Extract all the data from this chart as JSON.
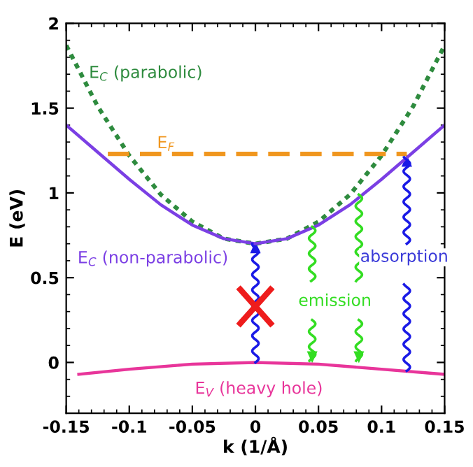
{
  "chart_data": {
    "type": "line",
    "xlabel": "k (1/Å)",
    "ylabel": "E (eV)",
    "xlim": [
      -0.15,
      0.15
    ],
    "xticks": [
      -0.15,
      -0.1,
      -0.05,
      0,
      0.05,
      0.1,
      0.15
    ],
    "ylim": [
      -0.3,
      2
    ],
    "yticks": [
      0,
      0.5,
      1,
      1.5,
      2
    ],
    "grid": false,
    "legend": false,
    "series": [
      {
        "name": "E$_{C}$ (parabolic)",
        "color": "#2e8b3e",
        "line_style": "dotted",
        "x": [
          -0.15,
          -0.125,
          -0.1,
          -0.075,
          -0.05,
          -0.025,
          0,
          0.025,
          0.05,
          0.075,
          0.1,
          0.125,
          0.15
        ],
        "values": [
          1.87,
          1.51,
          1.22,
          0.99,
          0.83,
          0.73,
          0.7,
          0.73,
          0.83,
          0.99,
          1.22,
          1.51,
          1.87
        ]
      },
      {
        "name": "E$_{C}$ (non-parabolic)",
        "color": "#7b3fe4",
        "line_style": "solid",
        "x": [
          -0.15,
          -0.125,
          -0.1,
          -0.075,
          -0.05,
          -0.025,
          0,
          0.025,
          0.05,
          0.075,
          0.1,
          0.125,
          0.15
        ],
        "values": [
          1.4,
          1.24,
          1.08,
          0.93,
          0.81,
          0.73,
          0.7,
          0.73,
          0.81,
          0.93,
          1.08,
          1.24,
          1.4
        ]
      },
      {
        "name": "E$_{F}$",
        "color": "#f0961e",
        "line_style": "dashed",
        "x": [
          -0.117,
          0.12
        ],
        "values": [
          1.23,
          1.23
        ]
      },
      {
        "name": "E$_{V}$ (heavy hole)",
        "color": "#e8359a",
        "line_style": "solid",
        "x": [
          -0.14,
          -0.1,
          -0.05,
          0,
          0.05,
          0.1,
          0.15
        ],
        "values": [
          -0.07,
          -0.04,
          -0.01,
          0,
          -0.01,
          -0.04,
          -0.07
        ]
      }
    ],
    "annotations": [
      "emission",
      "absorption"
    ]
  }
}
